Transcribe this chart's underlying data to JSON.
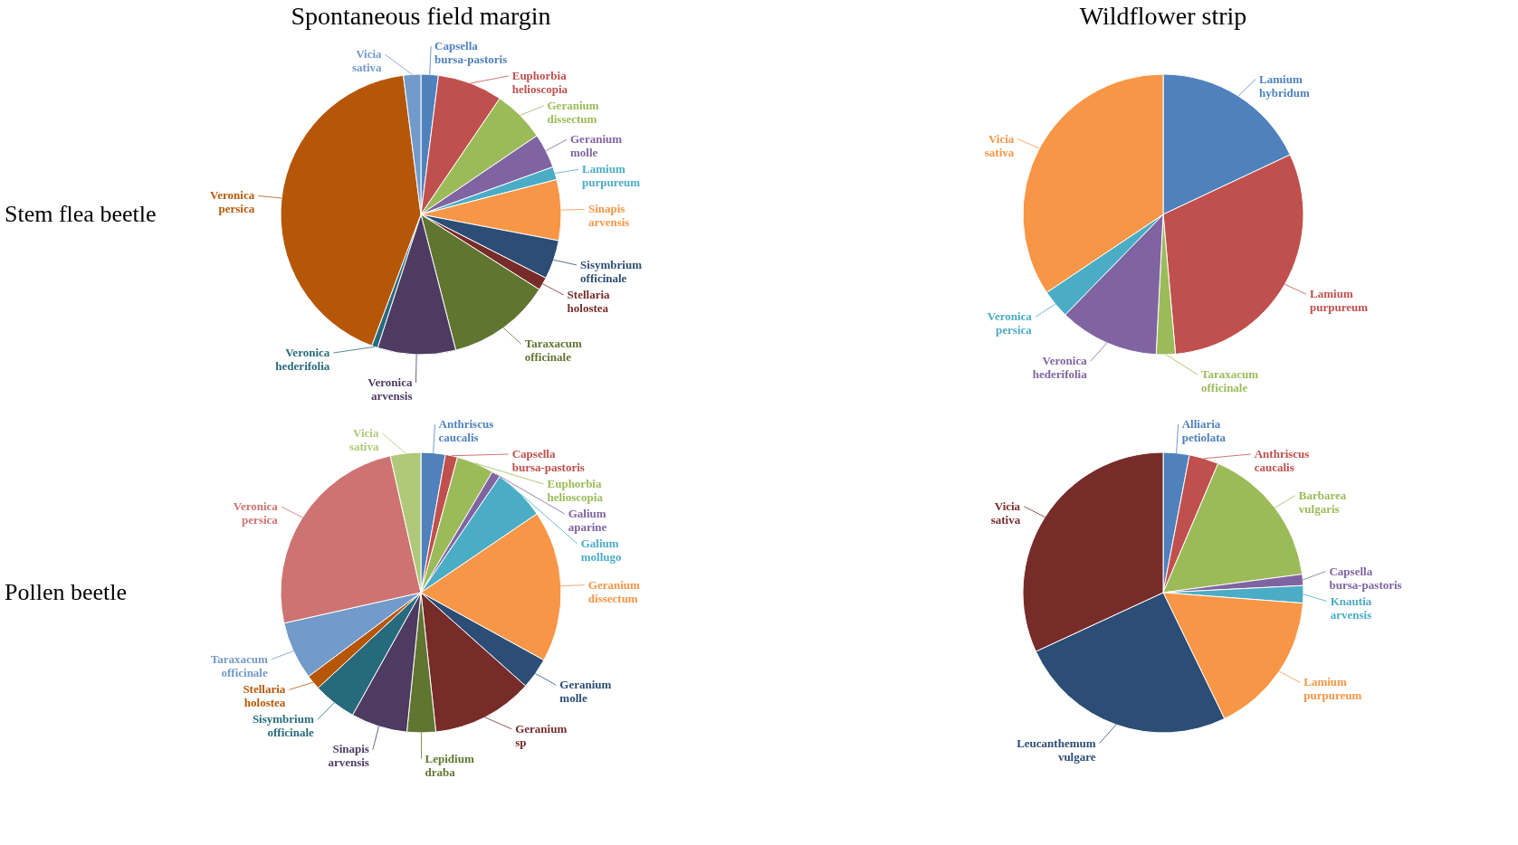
{
  "chart_data": [
    {
      "type": "pie",
      "title": "Spontaneous field margin",
      "annotations": [
        "Stem flea beetle"
      ],
      "categories": [
        "Capsella bursa-pastoris",
        "Euphorbia helioscopia",
        "Geranium dissectum",
        "Geranium molle",
        "Lamium purpureum",
        "Sinapis arvensis",
        "Sisymbrium officinale",
        "Stellaria holostea",
        "Taraxacum officinale",
        "Veronica arvensis",
        "Veronica hederifolia",
        "Veronica persica",
        "Vicia sativa"
      ],
      "values": [
        2,
        7.5,
        6,
        4,
        1.5,
        7,
        4.5,
        1.5,
        12,
        9,
        0.7,
        42.3,
        2
      ],
      "colors": [
        "#4f81bd",
        "#c0504d",
        "#9bbb59",
        "#8064a2",
        "#4bacc6",
        "#f79646",
        "#2c4d75",
        "#772c2a",
        "#5f7530",
        "#4d3b62",
        "#276a7c",
        "#b65708",
        "#729aca"
      ]
    },
    {
      "type": "pie",
      "title": "Wildflower strip",
      "categories": [
        "Lamium hybridum",
        "Lamium purpureum",
        "Taraxacum officinale",
        "Veronica hederifolia",
        "Veronica persica",
        "Vicia sativa"
      ],
      "values": [
        18,
        30.6,
        2.2,
        11.5,
        3.3,
        34.4
      ],
      "colors": [
        "#4f81bd",
        "#c0504d",
        "#9bbb59",
        "#8064a2",
        "#4bacc6",
        "#f79646"
      ]
    },
    {
      "type": "pie",
      "annotations": [
        "Pollen beetle"
      ],
      "categories": [
        "Anthriscus caucalis",
        "Capsella bursa-pastoris",
        "Euphorbia helioscopia",
        "Galium aparine",
        "Galium mollugo",
        "Geranium dissectum",
        "Geranium molle",
        "Geranium sp",
        "Lepidium draba",
        "Sinapis arvensis",
        "Sisymbrium officinale",
        "Stellaria holostea",
        "Taraxacum officinale",
        "Veronica persica",
        "Vicia sativa"
      ],
      "values": [
        2.8,
        1.4,
        4.3,
        1,
        6,
        17.5,
        3.6,
        11.7,
        3.3,
        6.5,
        5,
        1.7,
        6.7,
        25,
        3.5
      ],
      "colors": [
        "#4f81bd",
        "#c0504d",
        "#9bbb59",
        "#8064a2",
        "#4bacc6",
        "#f79646",
        "#2c4d75",
        "#772c2a",
        "#5f7530",
        "#4d3b62",
        "#276a7c",
        "#b65708",
        "#729aca",
        "#cd7371",
        "#afc97a"
      ]
    },
    {
      "type": "pie",
      "categories": [
        "Alliaria petiolata",
        "Anthriscus caucalis",
        "Barbarea vulgaris",
        "Capsella bursa-pastoris",
        "Knautia arvensis",
        "Lamium purpureum",
        "Leucanthemum vulgare",
        "Vicia sativa"
      ],
      "values": [
        3,
        3.4,
        16.5,
        1.3,
        2,
        16.6,
        25.3,
        31.9
      ],
      "colors": [
        "#4f81bd",
        "#c0504d",
        "#9bbb59",
        "#8064a2",
        "#4bacc6",
        "#f79646",
        "#2c4d75",
        "#772c2a"
      ]
    }
  ]
}
